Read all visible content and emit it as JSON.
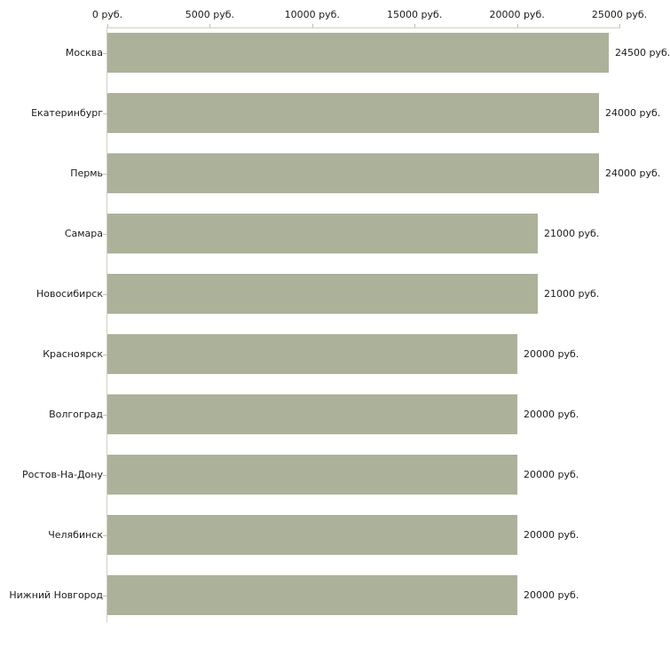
{
  "chart_data": {
    "type": "bar",
    "orientation": "horizontal",
    "title": "",
    "categories": [
      "Москва",
      "Екатеринбург",
      "Пермь",
      "Самара",
      "Новосибирск",
      "Красноярск",
      "Волгоград",
      "Ростов-На-Дону",
      "Челябинск",
      "Нижний Новгород"
    ],
    "values": [
      24500,
      24000,
      24000,
      21000,
      21000,
      20000,
      20000,
      20000,
      20000,
      20000
    ],
    "value_labels": [
      "24500 руб.",
      "24000 руб.",
      "24000 руб.",
      "21000 руб.",
      "21000 руб.",
      "20000 руб.",
      "20000 руб.",
      "20000 руб.",
      "20000 руб.",
      "20000 руб."
    ],
    "x_axis": {
      "position": "top",
      "xlim": [
        0,
        25000
      ],
      "ticks": [
        0,
        5000,
        10000,
        15000,
        20000,
        25000
      ],
      "tick_labels": [
        "0 руб.",
        "5000 руб.",
        "10000 руб.",
        "15000 руб.",
        "20000 руб.",
        "25000 руб."
      ]
    },
    "unit": "руб.",
    "grid": false,
    "legend": null,
    "colors": {
      "bar": "#acb29a",
      "axis_line": "#d0d0c2",
      "tick": "#c3c3a1",
      "text": "#1b1b1b",
      "background": "#ffffff"
    }
  }
}
